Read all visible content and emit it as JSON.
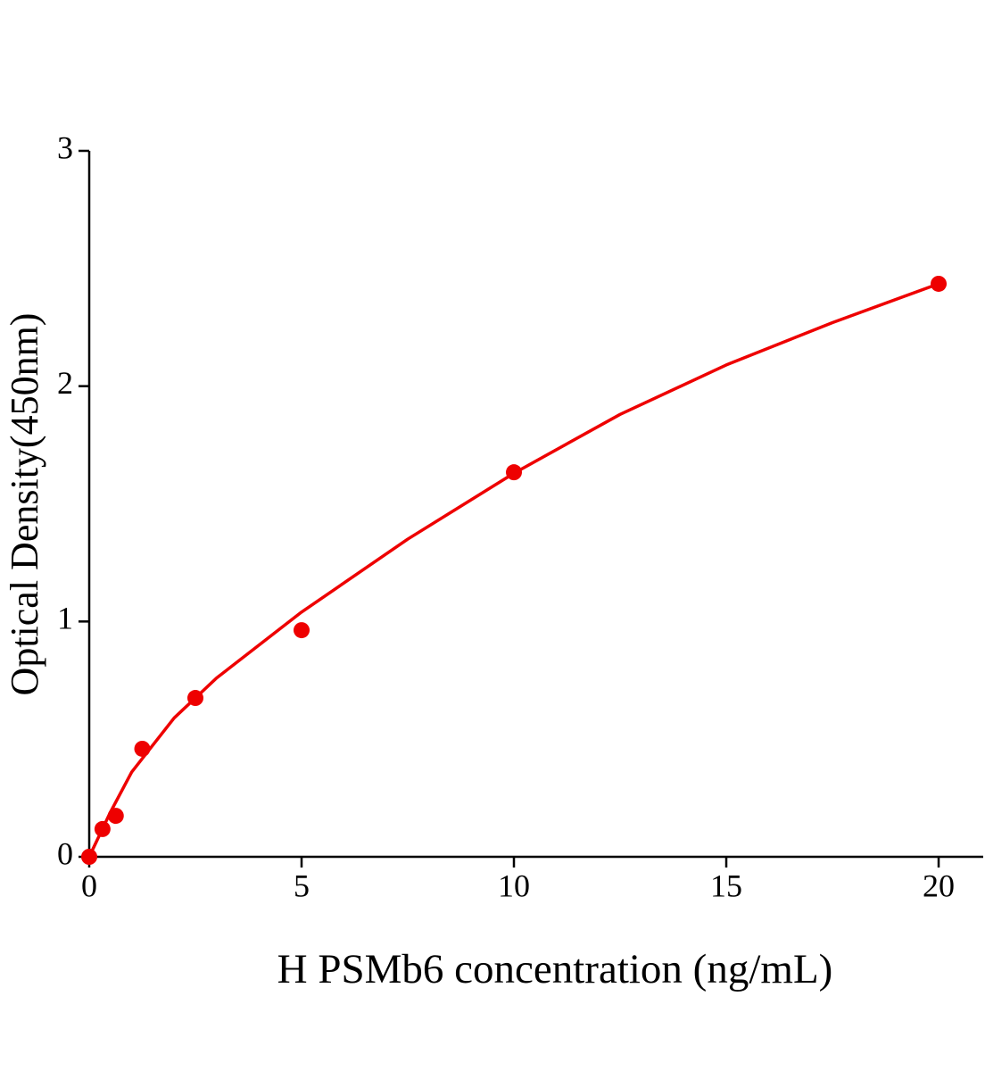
{
  "chart_data": {
    "type": "scatter",
    "xlabel": "H PSMb6 concentration (ng/mL)",
    "ylabel": "Optical Density(450nm)",
    "xlim": [
      0,
      21.05
    ],
    "ylim": [
      0,
      3
    ],
    "xticks": [
      0,
      5,
      10,
      15,
      20
    ],
    "yticks": [
      0,
      1,
      2,
      3
    ],
    "series": [
      {
        "style": "markers",
        "color": "#ee0000",
        "x": [
          0,
          0.3125,
          0.625,
          1.25,
          2.5,
          5,
          10,
          20
        ],
        "values": [
          0.0,
          0.118,
          0.174,
          0.459,
          0.675,
          0.963,
          1.634,
          2.435
        ]
      },
      {
        "style": "line",
        "color": "#ee0000",
        "x": [
          0,
          0.5,
          1,
          2,
          3,
          5,
          7.5,
          10,
          12.5,
          15,
          17.5,
          20
        ],
        "values": [
          0,
          0.19,
          0.36,
          0.59,
          0.76,
          1.04,
          1.35,
          1.63,
          1.88,
          2.09,
          2.27,
          2.435
        ]
      }
    ]
  }
}
